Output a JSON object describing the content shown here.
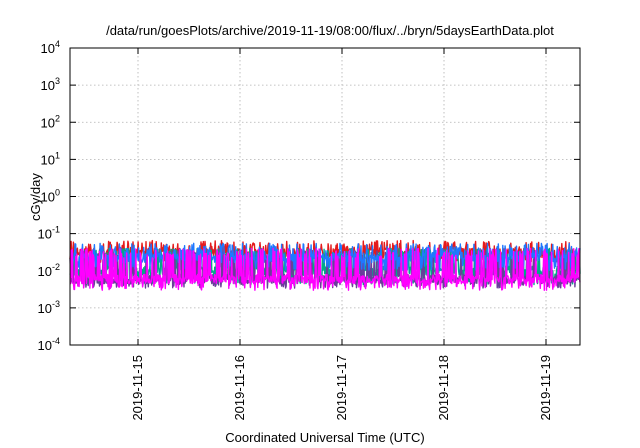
{
  "chart_data": {
    "type": "line",
    "title": "/data/run/goesPlots/archive/2019-11-19/08:00/flux/../bryn/5daysEarthData.plot",
    "xlabel": "Coordinated Universal Time (UTC)",
    "ylabel": "cGy/day",
    "yscale": "log",
    "ylim": [
      0.0001,
      10000
    ],
    "xlim": [
      "2019-11-14 08:00",
      "2019-11-19 08:00"
    ],
    "grid": true,
    "y_ticks": [
      {
        "value": 0.0001,
        "base": "10",
        "exp": "-4"
      },
      {
        "value": 0.001,
        "base": "10",
        "exp": "-3"
      },
      {
        "value": 0.01,
        "base": "10",
        "exp": "-2"
      },
      {
        "value": 0.1,
        "base": "10",
        "exp": "-1"
      },
      {
        "value": 1,
        "base": "10",
        "exp": "0"
      },
      {
        "value": 10,
        "base": "10",
        "exp": "1"
      },
      {
        "value": 100,
        "base": "10",
        "exp": "2"
      },
      {
        "value": 1000,
        "base": "10",
        "exp": "3"
      },
      {
        "value": 10000,
        "base": "10",
        "exp": "4"
      }
    ],
    "x_ticks": [
      "2019-11-15",
      "2019-11-16",
      "2019-11-17",
      "2019-11-18",
      "2019-11-19"
    ],
    "series": [
      {
        "color": "#e41a1c",
        "base": 0.03,
        "spike": 0.065,
        "dip": 0.02
      },
      {
        "color": "#00aa88",
        "base": 0.01,
        "spike": 0.04,
        "dip": 0.005
      },
      {
        "color": "#6a3d9a",
        "base": 0.006,
        "spike": 0.035,
        "dip": 0.004
      },
      {
        "color": "#1f78ff",
        "base": 0.022,
        "spike": 0.055,
        "dip": 0.012
      },
      {
        "color": "#ff00ff",
        "base": 0.006,
        "spike": 0.04,
        "dip": 0.0035
      }
    ]
  }
}
